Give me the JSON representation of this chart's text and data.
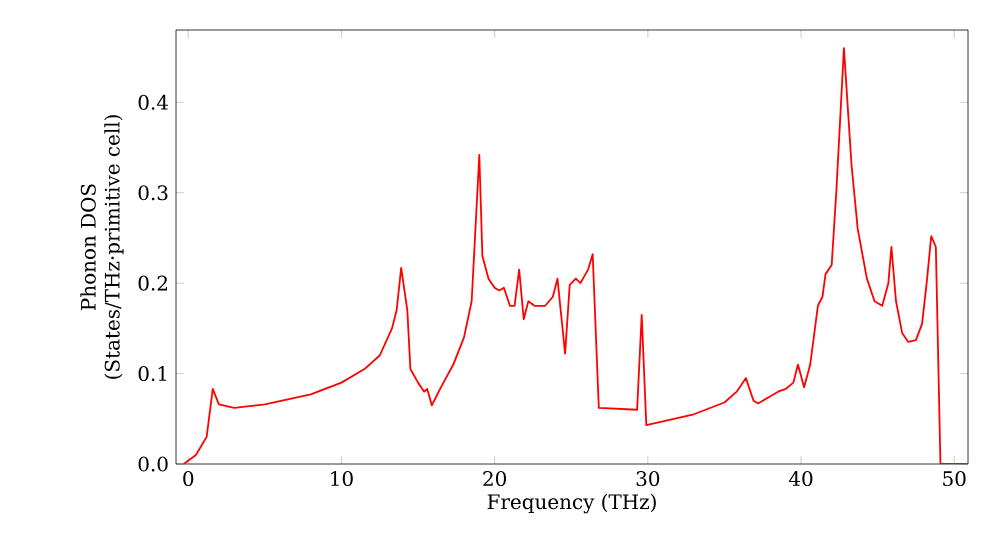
{
  "chart_data": {
    "type": "line",
    "xlabel": "Frequency (THz)",
    "ylabel": "Phonon DOS\n(States/THz·primitive cell)",
    "xlim": [
      -0.8,
      50.9
    ],
    "ylim": [
      0,
      0.48
    ],
    "xticks": [
      0,
      10,
      20,
      30,
      40,
      50
    ],
    "yticks": [
      {
        "value": 0,
        "label": "0.0"
      },
      {
        "value": 0.1,
        "label": "0.1"
      },
      {
        "value": 0.2,
        "label": "0.2"
      },
      {
        "value": 0.3,
        "label": "0.3"
      },
      {
        "value": 0.4,
        "label": "0.4"
      }
    ],
    "marker": "none",
    "line_style": "solid",
    "series": [
      {
        "color": "#ff0000",
        "x": [
          -0.3,
          0.5,
          1.2,
          1.6,
          2.0,
          3,
          5,
          8,
          10,
          11.5,
          12.5,
          13.3,
          13.6,
          13.9,
          14.3,
          14.5,
          15,
          15.4,
          15.6,
          15.9,
          16.5,
          17.3,
          18,
          18.5,
          19.0,
          19.2,
          19.6,
          20,
          20.3,
          20.6,
          21,
          21.3,
          21.6,
          21.9,
          22.2,
          22.6,
          23.3,
          23.8,
          24.1,
          24.6,
          24.9,
          25.3,
          25.6,
          26.1,
          26.4,
          26.8,
          29.3,
          29.6,
          29.9,
          33,
          35,
          35.8,
          36.4,
          36.9,
          37.2,
          38,
          38.5,
          39,
          39.5,
          39.8,
          40.2,
          40.6,
          41.1,
          41.4,
          41.6,
          42,
          42.3,
          42.8,
          43.3,
          43.7,
          44.3,
          44.8,
          45.3,
          45.7,
          45.9,
          46.2,
          46.6,
          47,
          47.5,
          47.9,
          48.2,
          48.5,
          48.8,
          49.1,
          50.9
        ],
        "values": [
          0,
          0.01,
          0.03,
          0.083,
          0.066,
          0.062,
          0.066,
          0.077,
          0.09,
          0.105,
          0.12,
          0.15,
          0.17,
          0.217,
          0.17,
          0.105,
          0.09,
          0.08,
          0.083,
          0.065,
          0.085,
          0.11,
          0.14,
          0.18,
          0.342,
          0.23,
          0.205,
          0.195,
          0.192,
          0.195,
          0.175,
          0.175,
          0.215,
          0.16,
          0.18,
          0.175,
          0.175,
          0.185,
          0.205,
          0.122,
          0.198,
          0.205,
          0.2,
          0.215,
          0.232,
          0.062,
          0.06,
          0.165,
          0.043,
          0.055,
          0.068,
          0.08,
          0.095,
          0.07,
          0.067,
          0.075,
          0.08,
          0.083,
          0.09,
          0.11,
          0.085,
          0.11,
          0.175,
          0.185,
          0.21,
          0.22,
          0.3,
          0.46,
          0.33,
          0.26,
          0.205,
          0.18,
          0.175,
          0.2,
          0.24,
          0.18,
          0.145,
          0.135,
          0.137,
          0.155,
          0.2,
          0.252,
          0.24,
          0,
          0
        ]
      }
    ]
  }
}
